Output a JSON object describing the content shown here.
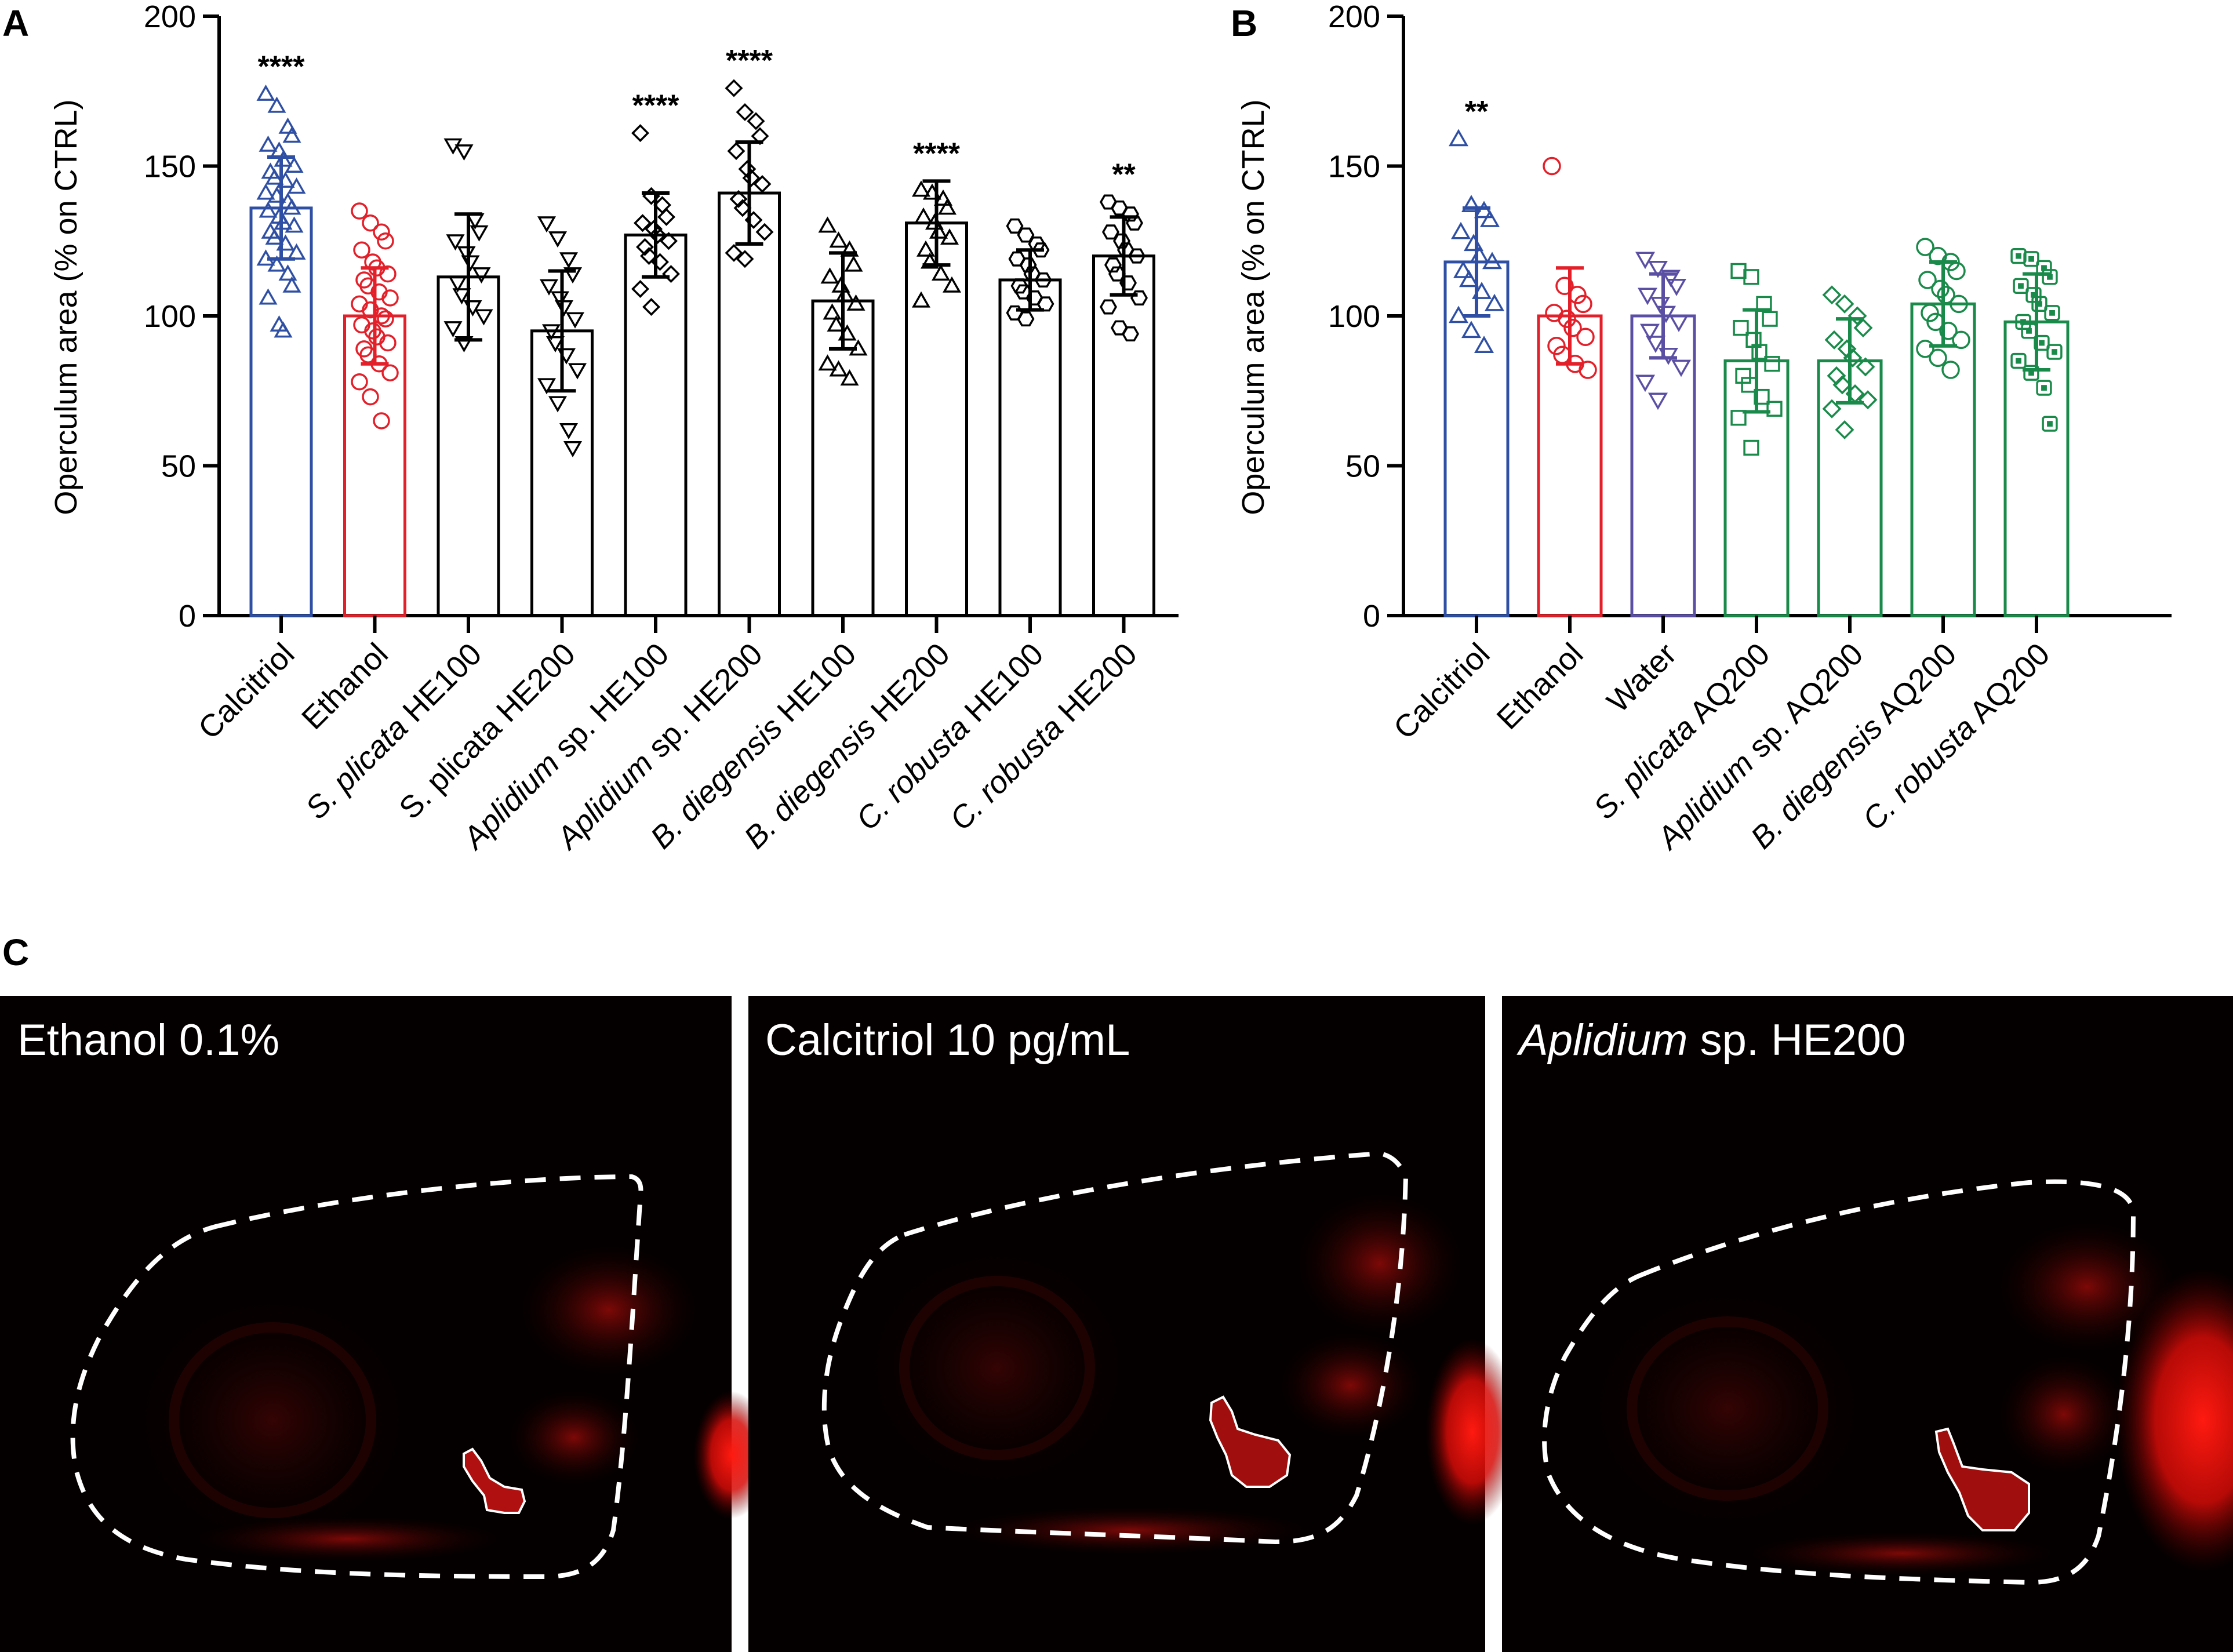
{
  "chart_data": [
    {
      "panel": "A",
      "type": "bar",
      "ylabel": "Operculum area (% on CTRL)",
      "ylim": [
        0,
        200
      ],
      "yticks": [
        0,
        50,
        100,
        150,
        200
      ],
      "grid": false,
      "categories": [
        {
          "parts": [
            {
              "t": "Calcitriol",
              "i": false
            }
          ]
        },
        {
          "parts": [
            {
              "t": "Ethanol",
              "i": false
            }
          ]
        },
        {
          "parts": [
            {
              "t": "S. plicata",
              "i": true
            },
            {
              "t": " HE100",
              "i": false
            }
          ]
        },
        {
          "parts": [
            {
              "t": "S. plicata HE200",
              "i": false
            }
          ]
        },
        {
          "parts": [
            {
              "t": "Aplidium",
              "i": true
            },
            {
              "t": " sp. HE100",
              "i": false
            }
          ]
        },
        {
          "parts": [
            {
              "t": "Aplidium",
              "i": true
            },
            {
              "t": " sp. HE200",
              "i": false
            }
          ]
        },
        {
          "parts": [
            {
              "t": "B. diegensis",
              "i": true
            },
            {
              "t": " HE100",
              "i": false
            }
          ]
        },
        {
          "parts": [
            {
              "t": "B. diegensis",
              "i": true
            },
            {
              "t": " HE200",
              "i": false
            }
          ]
        },
        {
          "parts": [
            {
              "t": "C. robusta",
              "i": true
            },
            {
              "t": " HE100",
              "i": false
            }
          ]
        },
        {
          "parts": [
            {
              "t": "C. robusta",
              "i": true
            },
            {
              "t": " HE200",
              "i": false
            }
          ]
        }
      ],
      "values": [
        136,
        100,
        113,
        95,
        127,
        141,
        105,
        131,
        112,
        120
      ],
      "sd": [
        17,
        16,
        21,
        20,
        14,
        17,
        16,
        14,
        10,
        13
      ],
      "significance": [
        "****",
        "",
        "",
        "",
        "****",
        "****",
        "",
        "****",
        "",
        "**"
      ],
      "colors": [
        "#2e4fa3",
        "#e3202a",
        "#000000",
        "#000000",
        "#000000",
        "#000000",
        "#000000",
        "#000000",
        "#000000",
        "#000000"
      ],
      "markers": [
        "triangle-up",
        "circle",
        "triangle-down",
        "triangle-down",
        "diamond",
        "diamond",
        "triangle-up",
        "triangle-up",
        "hexagon",
        "hexagon"
      ],
      "points": [
        [
          174,
          170,
          163,
          160,
          157,
          155,
          152,
          150,
          148,
          146,
          145,
          143,
          141,
          140,
          138,
          136,
          135,
          133,
          131,
          130,
          128,
          126,
          124,
          121,
          119,
          117,
          114,
          110,
          106,
          97,
          95
        ],
        [
          135,
          131,
          128,
          125,
          122,
          118,
          116,
          114,
          112,
          110,
          108,
          106,
          104,
          102,
          100,
          99,
          97,
          95,
          93,
          91,
          89,
          87,
          84,
          81,
          78,
          73,
          65
        ],
        [
          157,
          155,
          132,
          128,
          125,
          121,
          118,
          114,
          111,
          107,
          103,
          100,
          96,
          91
        ],
        [
          131,
          126,
          119,
          114,
          110,
          106,
          103,
          99,
          95,
          91,
          87,
          82,
          77,
          71,
          62,
          56
        ],
        [
          161,
          140,
          137,
          133,
          131,
          129,
          127,
          125,
          123,
          120,
          118,
          114,
          109,
          103
        ],
        [
          176,
          168,
          165,
          160,
          155,
          149,
          146,
          144,
          139,
          136,
          132,
          128,
          121,
          119
        ],
        [
          130,
          125,
          122,
          117,
          113,
          110,
          107,
          104,
          101,
          97,
          94,
          89,
          84,
          82,
          79
        ],
        [
          142,
          141,
          139,
          136,
          133,
          131,
          128,
          126,
          122,
          118,
          114,
          110,
          105
        ],
        [
          130,
          127,
          124,
          122,
          119,
          117,
          114,
          112,
          110,
          108,
          106,
          104,
          101,
          99
        ],
        [
          138,
          136,
          134,
          131,
          128,
          125,
          122,
          120,
          117,
          114,
          111,
          106,
          103,
          96,
          94
        ]
      ]
    },
    {
      "panel": "B",
      "type": "bar",
      "ylabel": "Operculum area (% on CTRL)",
      "ylim": [
        0,
        200
      ],
      "yticks": [
        0,
        50,
        100,
        150,
        200
      ],
      "grid": false,
      "categories": [
        {
          "parts": [
            {
              "t": "Calcitriol",
              "i": false
            }
          ]
        },
        {
          "parts": [
            {
              "t": "Ethanol",
              "i": false
            }
          ]
        },
        {
          "parts": [
            {
              "t": "Water",
              "i": false
            }
          ]
        },
        {
          "parts": [
            {
              "t": "S. plicata",
              "i": true
            },
            {
              "t": " AQ200",
              "i": false
            }
          ]
        },
        {
          "parts": [
            {
              "t": "Aplidium",
              "i": true
            },
            {
              "t": " sp. AQ200",
              "i": false
            }
          ]
        },
        {
          "parts": [
            {
              "t": "B. diegensis",
              "i": true
            },
            {
              "t": " AQ200",
              "i": false
            }
          ]
        },
        {
          "parts": [
            {
              "t": "C. robusta",
              "i": true
            },
            {
              "t": " AQ200",
              "i": false
            }
          ]
        }
      ],
      "values": [
        118,
        100,
        100,
        85,
        85,
        104,
        98
      ],
      "sd": [
        18,
        16,
        14,
        17,
        14,
        14,
        16
      ],
      "significance": [
        "**",
        "",
        "",
        "",
        "",
        "",
        ""
      ],
      "colors": [
        "#2e4fa3",
        "#e3202a",
        "#5a4fa3",
        "#1a8a4a",
        "#1a8a4a",
        "#1a8a4a",
        "#1a8a4a"
      ],
      "markers": [
        "triangle-up",
        "circle",
        "triangle-down",
        "square",
        "diamond",
        "circle",
        "dot-square"
      ],
      "points": [
        [
          159,
          137,
          135,
          132,
          128,
          124,
          120,
          118,
          115,
          112,
          108,
          104,
          100,
          95,
          90
        ],
        [
          150,
          110,
          107,
          104,
          101,
          99,
          96,
          93,
          90,
          87,
          84,
          82
        ],
        [
          119,
          116,
          113,
          110,
          107,
          104,
          101,
          98,
          95,
          91,
          87,
          83,
          78,
          72
        ],
        [
          115,
          113,
          104,
          99,
          96,
          92,
          88,
          84,
          80,
          77,
          73,
          69,
          66,
          56
        ],
        [
          107,
          104,
          100,
          96,
          92,
          89,
          86,
          83,
          80,
          77,
          74,
          72,
          69,
          62
        ],
        [
          123,
          120,
          118,
          115,
          112,
          109,
          107,
          104,
          101,
          98,
          95,
          92,
          89,
          86,
          82
        ],
        [
          120,
          119,
          116,
          113,
          110,
          107,
          104,
          101,
          98,
          95,
          91,
          88,
          85,
          81,
          76,
          64
        ]
      ]
    }
  ],
  "panel_labels": {
    "a": "A",
    "b": "B",
    "c": "C"
  },
  "photos": [
    {
      "label_parts": [
        {
          "t": "Ethanol 0.1%",
          "i": false
        }
      ]
    },
    {
      "label_parts": [
        {
          "t": "Calcitriol 10 pg/mL",
          "i": false
        }
      ]
    },
    {
      "label_parts": [
        {
          "t": "Aplidium",
          "i": true
        },
        {
          "t": " sp. HE200",
          "i": false
        }
      ]
    }
  ]
}
